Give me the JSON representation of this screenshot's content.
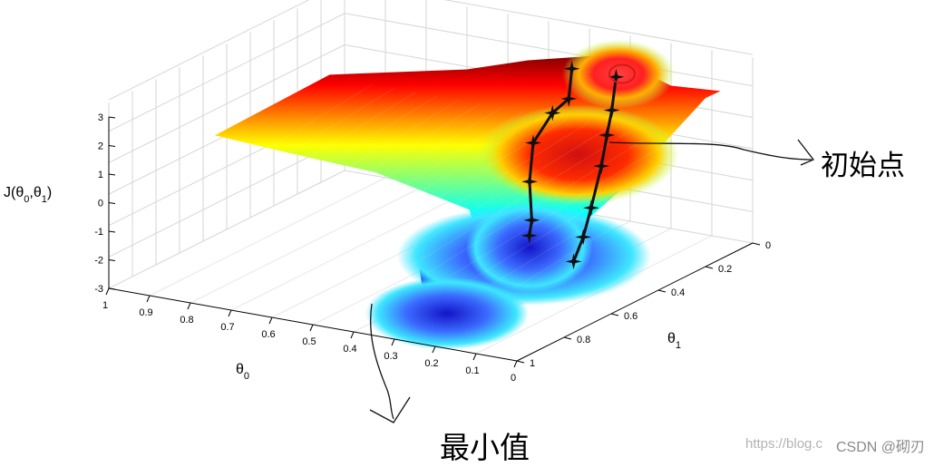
{
  "chart_data": {
    "type": "surface",
    "zlabel": "J(θ0,θ1)",
    "xlabel": "θ0",
    "ylabel": "θ1",
    "z_ticks": [
      "3",
      "2",
      "1",
      "0",
      "-1",
      "-2",
      "-3"
    ],
    "x_ticks": [
      "1",
      "0.9",
      "0.8",
      "0.7",
      "0.6",
      "0.5",
      "0.4",
      "0.3",
      "0.2",
      "0.1",
      "0"
    ],
    "y_ticks": [
      "0",
      "0.2",
      "0.4",
      "0.6",
      "0.8",
      "1"
    ],
    "zlim": [
      -3,
      3
    ],
    "xlim": [
      0,
      1
    ],
    "ylim": [
      0,
      1
    ],
    "grid": true,
    "colormap": "jet",
    "surface_extrema": [
      {
        "theta0": 0.3,
        "theta1": 0.05,
        "J": 2.6
      },
      {
        "theta0": 0.05,
        "theta1": 0.65,
        "J": 3.0
      },
      {
        "theta0": 0.3,
        "theta1": 0.45,
        "J": -2.0
      },
      {
        "theta0": 0.2,
        "theta1": 0.95,
        "J": -1.8
      },
      {
        "theta0": 0.42,
        "theta1": 0.22,
        "J": -3.0
      }
    ],
    "descent_path": {
      "points": [
        {
          "theta0": 0.3,
          "theta1": 0.06,
          "J": 2.3
        },
        {
          "theta0": 0.27,
          "theta1": 0.13,
          "J": 1.5
        },
        {
          "theta0": 0.23,
          "theta1": 0.22,
          "J": 1.1
        },
        {
          "theta0": 0.18,
          "theta1": 0.33,
          "J": 0.6
        },
        {
          "theta0": 0.13,
          "theta1": 0.46,
          "J": -0.2
        },
        {
          "theta0": 0.08,
          "theta1": 0.58,
          "J": -0.6
        },
        {
          "theta0": 0.04,
          "theta1": 0.69,
          "J": -0.9
        }
      ],
      "start_marker": {
        "theta0": 0.3,
        "theta1": 0.05
      }
    },
    "descent_path_2": {
      "points": [
        {
          "theta0": 0.42,
          "theta1": 0.04,
          "J": 2.2
        },
        {
          "theta0": 0.41,
          "theta1": 0.07,
          "J": 1.3
        },
        {
          "theta0": 0.45,
          "theta1": 0.07,
          "J": 0.7
        },
        {
          "theta0": 0.48,
          "theta1": 0.1,
          "J": -0.3
        },
        {
          "theta0": 0.46,
          "theta1": 0.15,
          "J": -1.4
        },
        {
          "theta0": 0.42,
          "theta1": 0.21,
          "J": -2.4
        },
        {
          "theta0": 0.42,
          "theta1": 0.22,
          "J": -2.9
        }
      ]
    },
    "colors": {
      "path": "#111111",
      "start_circle": "#d41a1a",
      "grid": "#d6d6d6",
      "axis": "#000000"
    }
  },
  "annotations": {
    "start": "初始点",
    "minimum": "最小值"
  },
  "watermark": {
    "left": "https://blog.c",
    "right": "CSDN @砌刃"
  }
}
